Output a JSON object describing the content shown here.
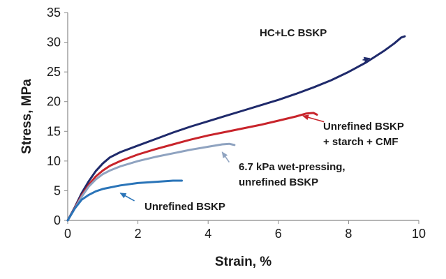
{
  "chart_data": {
    "type": "line",
    "title": "",
    "xlabel": "Strain, %",
    "ylabel": "Stress, MPa",
    "xlim": [
      0,
      10
    ],
    "ylim": [
      0,
      35
    ],
    "x_ticks": [
      "0",
      "2",
      "4",
      "6",
      "8",
      "10"
    ],
    "y_ticks": [
      "0",
      "5",
      "10",
      "15",
      "20",
      "25",
      "30",
      "35"
    ],
    "grid": false,
    "series": [
      {
        "name": "HC+LC BSKP",
        "color": "#1f2a6b",
        "points": [
          [
            0,
            0
          ],
          [
            0.2,
            2.2
          ],
          [
            0.4,
            4.6
          ],
          [
            0.6,
            6.6
          ],
          [
            0.8,
            8.3
          ],
          [
            1.0,
            9.6
          ],
          [
            1.2,
            10.6
          ],
          [
            1.5,
            11.5
          ],
          [
            2.0,
            12.6
          ],
          [
            2.5,
            13.7
          ],
          [
            3.0,
            14.8
          ],
          [
            3.5,
            15.8
          ],
          [
            4.0,
            16.7
          ],
          [
            4.5,
            17.6
          ],
          [
            5.0,
            18.5
          ],
          [
            5.5,
            19.4
          ],
          [
            6.0,
            20.3
          ],
          [
            6.5,
            21.3
          ],
          [
            7.0,
            22.4
          ],
          [
            7.5,
            23.6
          ],
          [
            8.0,
            25.0
          ],
          [
            8.5,
            26.6
          ],
          [
            9.0,
            28.5
          ],
          [
            9.3,
            29.8
          ],
          [
            9.5,
            30.8
          ],
          [
            9.6,
            31.0
          ]
        ]
      },
      {
        "name": "Unrefined BSKP + starch + CMF",
        "color": "#c8242b",
        "points": [
          [
            0,
            0
          ],
          [
            0.2,
            2.1
          ],
          [
            0.4,
            4.2
          ],
          [
            0.6,
            6.0
          ],
          [
            0.8,
            7.4
          ],
          [
            1.0,
            8.4
          ],
          [
            1.2,
            9.2
          ],
          [
            1.5,
            10.0
          ],
          [
            2.0,
            11.1
          ],
          [
            2.5,
            12.0
          ],
          [
            3.0,
            12.8
          ],
          [
            3.5,
            13.6
          ],
          [
            4.0,
            14.3
          ],
          [
            4.5,
            14.9
          ],
          [
            5.0,
            15.5
          ],
          [
            5.5,
            16.1
          ],
          [
            6.0,
            16.8
          ],
          [
            6.5,
            17.5
          ],
          [
            6.8,
            18.0
          ],
          [
            7.0,
            18.1
          ],
          [
            7.1,
            17.8
          ]
        ]
      },
      {
        "name": "6.7 kPa wet-pressing, unrefined BSKP",
        "color": "#8fa3c0",
        "points": [
          [
            0,
            0
          ],
          [
            0.2,
            2.0
          ],
          [
            0.4,
            4.0
          ],
          [
            0.6,
            5.7
          ],
          [
            0.8,
            6.9
          ],
          [
            1.0,
            7.8
          ],
          [
            1.2,
            8.4
          ],
          [
            1.5,
            9.1
          ],
          [
            2.0,
            10.0
          ],
          [
            2.5,
            10.7
          ],
          [
            3.0,
            11.3
          ],
          [
            3.5,
            11.9
          ],
          [
            4.0,
            12.4
          ],
          [
            4.4,
            12.8
          ],
          [
            4.6,
            12.9
          ],
          [
            4.75,
            12.7
          ]
        ]
      },
      {
        "name": "Unrefined BSKP",
        "color": "#2a74b8",
        "points": [
          [
            0,
            0
          ],
          [
            0.2,
            2.0
          ],
          [
            0.4,
            3.5
          ],
          [
            0.6,
            4.3
          ],
          [
            0.8,
            4.9
          ],
          [
            1.0,
            5.3
          ],
          [
            1.5,
            5.9
          ],
          [
            2.0,
            6.3
          ],
          [
            2.5,
            6.5
          ],
          [
            3.0,
            6.7
          ],
          [
            3.25,
            6.7
          ]
        ]
      }
    ],
    "annotations": [
      {
        "lines": [
          "HC+LC BSKP"
        ],
        "arrow_from": [
          8.4,
          27.0
        ],
        "arrow_to": [
          8.6,
          27.3
        ]
      },
      {
        "lines": [
          "Unrefined BSKP",
          "+ starch + CMF"
        ],
        "arrow_from": [
          7.3,
          16.6
        ],
        "arrow_to": [
          6.7,
          17.6
        ]
      },
      {
        "lines": [
          "6.7 kPa wet-pressing,",
          "unrefined BSKP"
        ],
        "arrow_from": [
          4.6,
          9.8
        ],
        "arrow_to": [
          4.4,
          11.5
        ]
      },
      {
        "lines": [
          "Unrefined BSKP"
        ],
        "arrow_from": [
          1.9,
          3.3
        ],
        "arrow_to": [
          1.5,
          4.6
        ]
      }
    ]
  }
}
